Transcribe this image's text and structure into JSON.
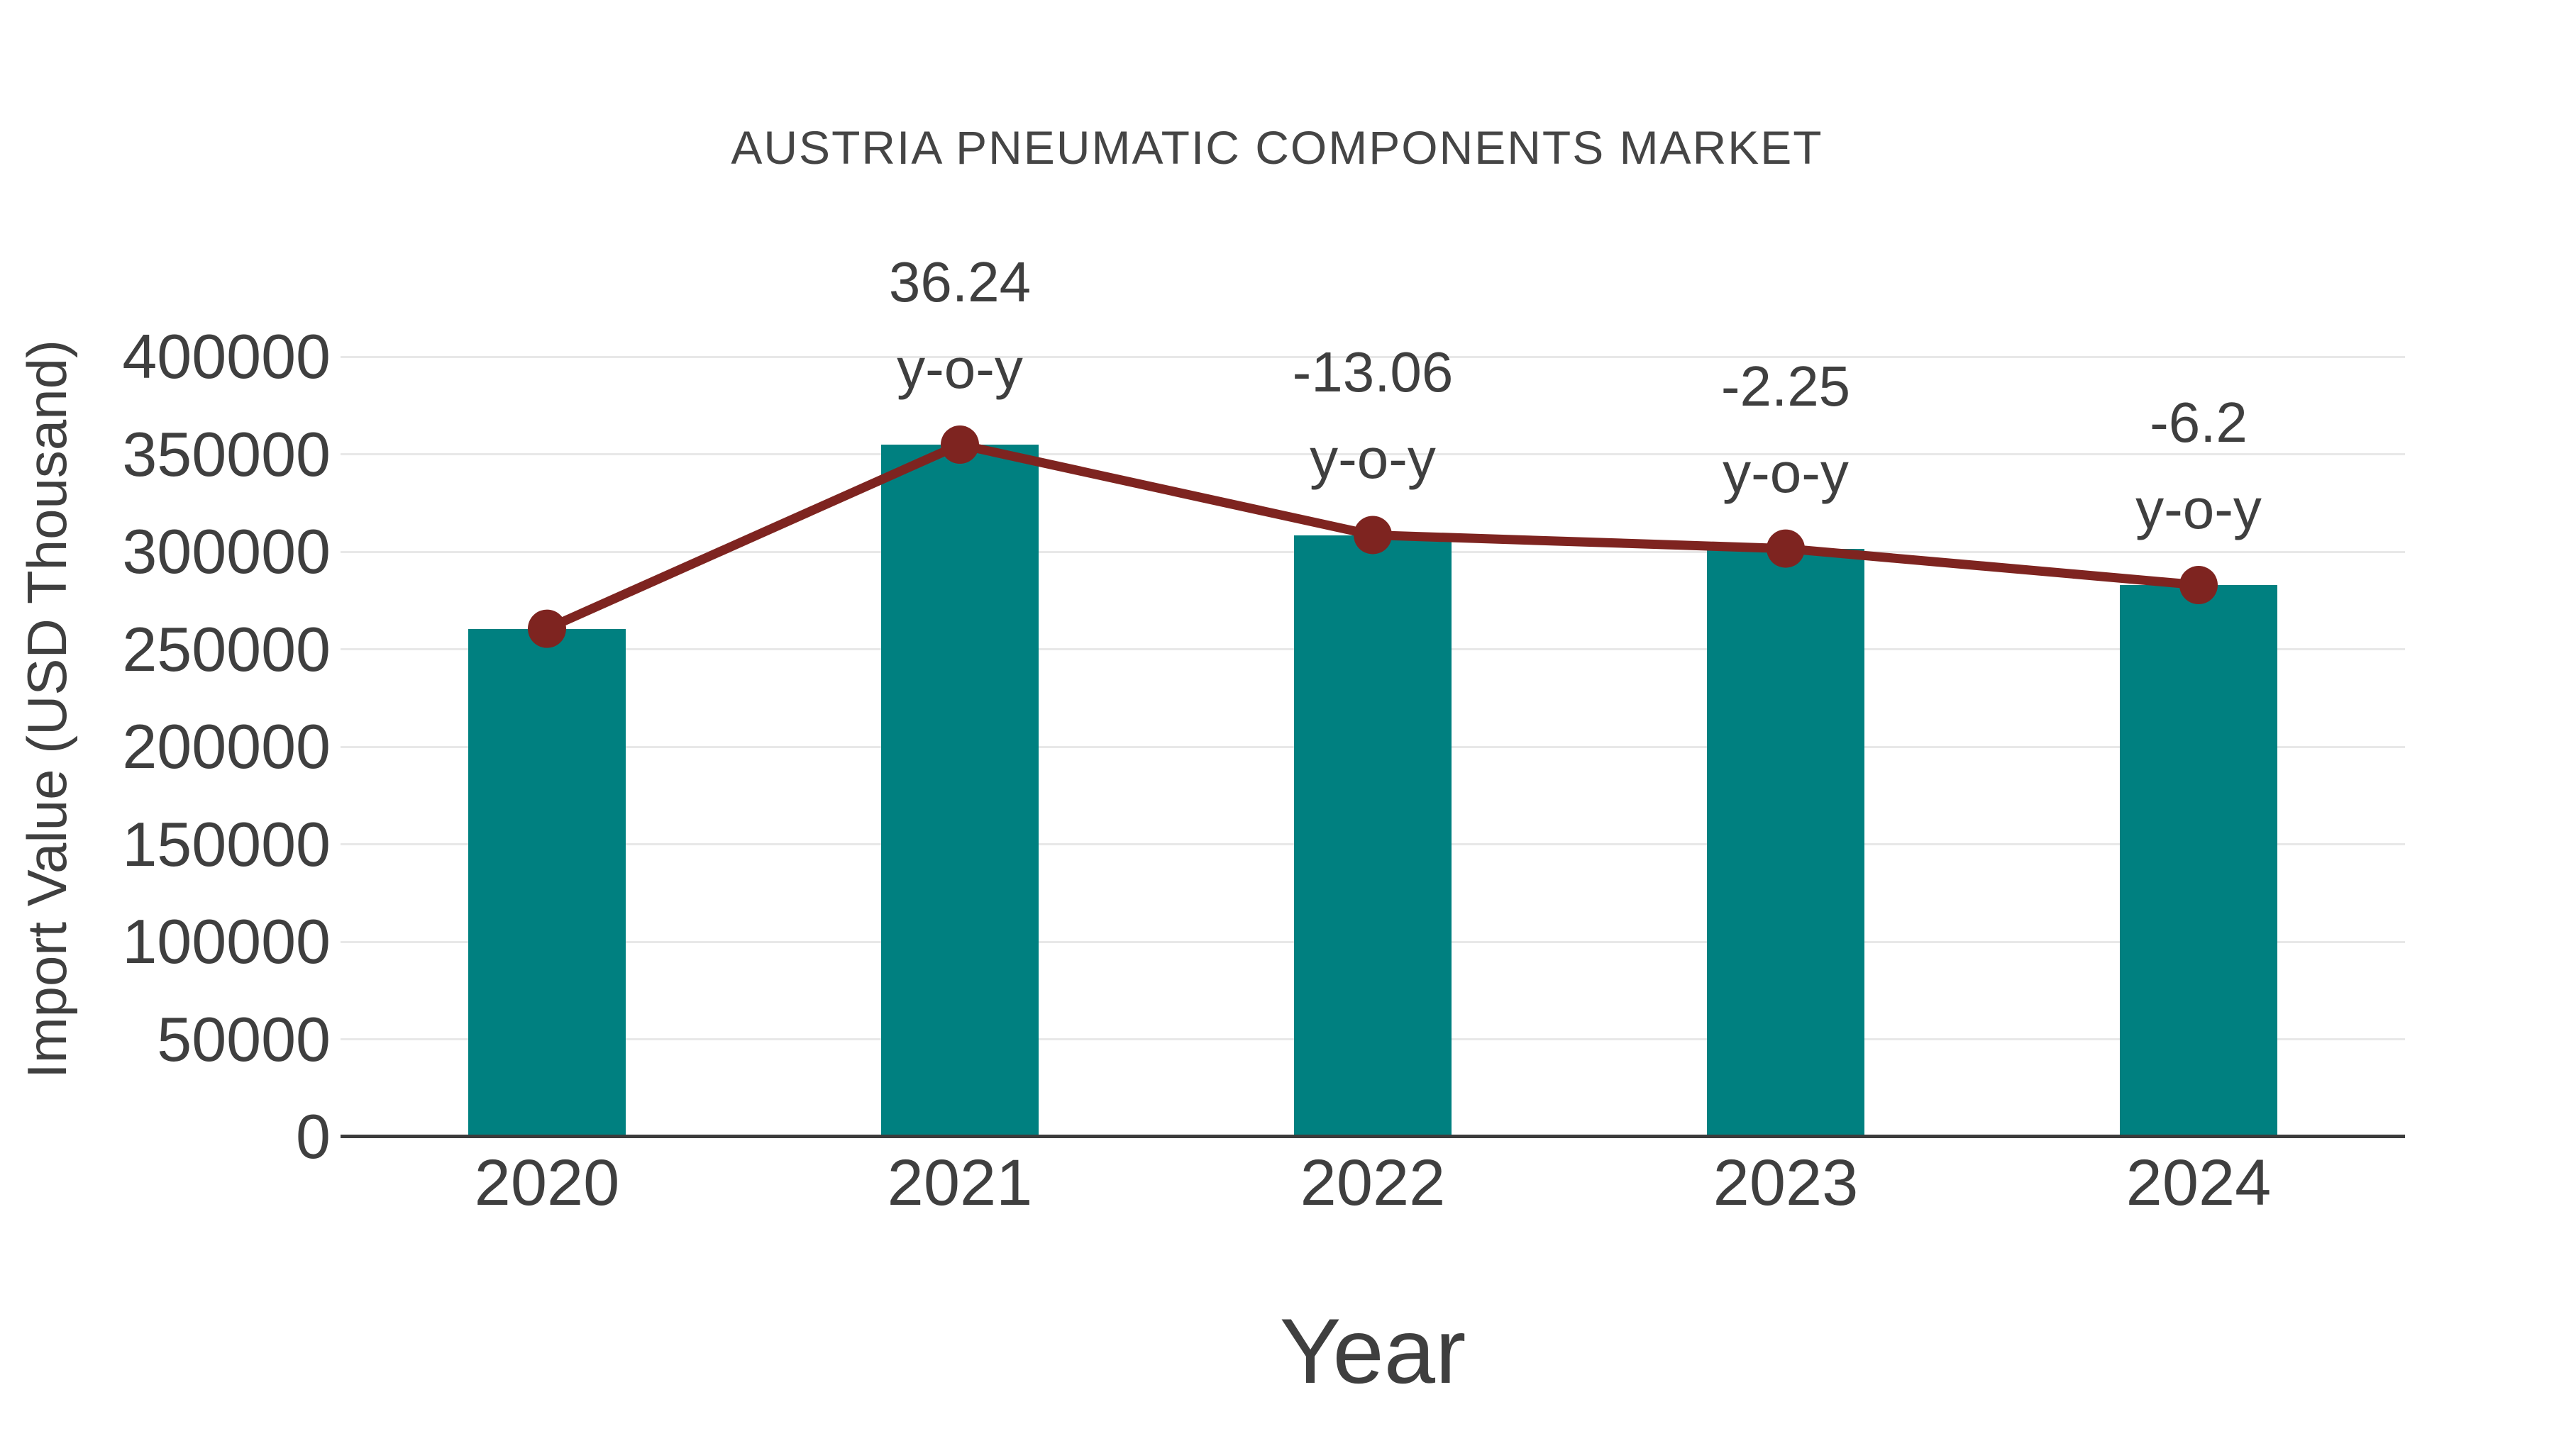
{
  "chart_data": {
    "type": "bar",
    "title": "AUSTRIA PNEUMATIC COMPONENTS MARKET",
    "xlabel": "Year",
    "ylabel": "Import Value (USD Thousand)",
    "categories": [
      "2020",
      "2021",
      "2022",
      "2023",
      "2024"
    ],
    "series": [
      {
        "name": "Import Value (USD Thousand)",
        "type": "bar",
        "color": "#008080",
        "values": [
          260500,
          354900,
          308550,
          301600,
          282900
        ]
      },
      {
        "name": "y-o-y growth",
        "type": "line",
        "color": "#7E2420",
        "values": [
          null,
          36.24,
          -13.06,
          -2.25,
          -6.2
        ],
        "point_labels": [
          null,
          "36.24",
          "-13.06",
          "-2.25",
          "-6.2"
        ],
        "point_label_suffix": "y-o-y"
      }
    ],
    "ylim": [
      0,
      400000
    ],
    "yticks": [
      0,
      50000,
      100000,
      150000,
      200000,
      250000,
      300000,
      350000,
      400000
    ],
    "grid": true,
    "legend_position": "none",
    "colors": {
      "bar": "#008080",
      "line": "#7E2420",
      "marker": "#7E2420",
      "text": "#3F3F3F",
      "title": "#454545",
      "grid": "#E8E8E8",
      "axis": "#3C3C3C",
      "background": "#FFFFFF"
    }
  }
}
